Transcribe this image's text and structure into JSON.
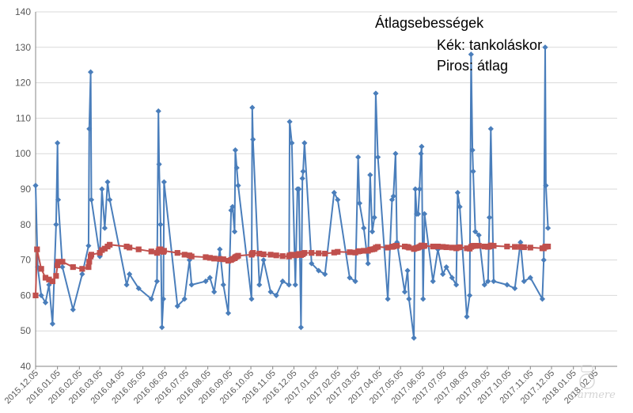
{
  "chart_data": {
    "type": "line",
    "title": "Átlagsebességek",
    "legend_lines": [
      "Kék: tankoláskor",
      "Piros: átlag"
    ],
    "ylim": [
      40,
      140
    ],
    "yticks": [
      40,
      50,
      60,
      70,
      80,
      90,
      100,
      110,
      120,
      130,
      140
    ],
    "grid": true,
    "xlim": [
      "2015-12-05",
      "2018-03-08"
    ],
    "xtick_labels": [
      "2015.12.05",
      "2016.01.05",
      "2016.02.05",
      "2016.03.05",
      "2016.04.05",
      "2016.05.05",
      "2016.06.05",
      "2016.07.05",
      "2016.08.05",
      "2016.09.05",
      "2016.10.05",
      "2016.11.05",
      "2016.12.05",
      "2017.01.05",
      "2017.02.05",
      "2017.03.05",
      "2017.04.05",
      "2017.05.05",
      "2017.06.05",
      "2017.07.05",
      "2017.08.05",
      "2017.09.05",
      "2017.10.05",
      "2017.11.05",
      "2017.12.05",
      "2018.01.05",
      "2018.02.05"
    ],
    "series": [
      {
        "name": "Kék: tankoláskor",
        "color": "#4a7ebb",
        "marker": "diamond",
        "points": [
          [
            "2015-12-05",
            91
          ],
          [
            "2015-12-08",
            68
          ],
          [
            "2015-12-13",
            60
          ],
          [
            "2015-12-19",
            58
          ],
          [
            "2015-12-24",
            63
          ],
          [
            "2015-12-29",
            52
          ],
          [
            "2016-01-03",
            80
          ],
          [
            "2016-01-05",
            103
          ],
          [
            "2016-01-06",
            87
          ],
          [
            "2016-01-12",
            68
          ],
          [
            "2016-01-27",
            56
          ],
          [
            "2016-02-09",
            66
          ],
          [
            "2016-02-18",
            74
          ],
          [
            "2016-02-19",
            107
          ],
          [
            "2016-02-21",
            123
          ],
          [
            "2016-02-22",
            87
          ],
          [
            "2016-03-05",
            71
          ],
          [
            "2016-03-08",
            90
          ],
          [
            "2016-03-12",
            79
          ],
          [
            "2016-03-16",
            92
          ],
          [
            "2016-03-19",
            87
          ],
          [
            "2016-04-12",
            63
          ],
          [
            "2016-04-16",
            66
          ],
          [
            "2016-04-29",
            62
          ],
          [
            "2016-05-17",
            59
          ],
          [
            "2016-05-25",
            64
          ],
          [
            "2016-05-27",
            112
          ],
          [
            "2016-05-28",
            97
          ],
          [
            "2016-05-30",
            80
          ],
          [
            "2016-06-01",
            51
          ],
          [
            "2016-06-03",
            59
          ],
          [
            "2016-06-04",
            92
          ],
          [
            "2016-06-23",
            57
          ],
          [
            "2016-07-03",
            59
          ],
          [
            "2016-07-10",
            70
          ],
          [
            "2016-07-13",
            63
          ],
          [
            "2016-08-02",
            64
          ],
          [
            "2016-08-08",
            65
          ],
          [
            "2016-08-14",
            61
          ],
          [
            "2016-08-22",
            73
          ],
          [
            "2016-08-27",
            63
          ],
          [
            "2016-09-03",
            55
          ],
          [
            "2016-09-07",
            84
          ],
          [
            "2016-09-09",
            85
          ],
          [
            "2016-09-12",
            78
          ],
          [
            "2016-09-13",
            101
          ],
          [
            "2016-09-15",
            96
          ],
          [
            "2016-09-17",
            91
          ],
          [
            "2016-10-06",
            59
          ],
          [
            "2016-10-07",
            113
          ],
          [
            "2016-10-08",
            104
          ],
          [
            "2016-10-17",
            63
          ],
          [
            "2016-10-23",
            70
          ],
          [
            "2016-11-02",
            61
          ],
          [
            "2016-11-10",
            60
          ],
          [
            "2016-11-19",
            64
          ],
          [
            "2016-11-28",
            63
          ],
          [
            "2016-11-29",
            109
          ],
          [
            "2016-12-02",
            103
          ],
          [
            "2016-12-07",
            63
          ],
          [
            "2016-12-10",
            90
          ],
          [
            "2016-12-12",
            90
          ],
          [
            "2016-12-15",
            51
          ],
          [
            "2016-12-17",
            93
          ],
          [
            "2016-12-18",
            95
          ],
          [
            "2016-12-20",
            103
          ],
          [
            "2016-12-30",
            69
          ],
          [
            "2017-01-09",
            67
          ],
          [
            "2017-01-18",
            66
          ],
          [
            "2017-01-31",
            89
          ],
          [
            "2017-02-05",
            87
          ],
          [
            "2017-02-22",
            65
          ],
          [
            "2017-03-02",
            64
          ],
          [
            "2017-03-06",
            99
          ],
          [
            "2017-03-08",
            86
          ],
          [
            "2017-03-14",
            79
          ],
          [
            "2017-03-20",
            69
          ],
          [
            "2017-03-23",
            94
          ],
          [
            "2017-03-26",
            78
          ],
          [
            "2017-03-29",
            82
          ],
          [
            "2017-03-31",
            117
          ],
          [
            "2017-04-03",
            99
          ],
          [
            "2017-04-17",
            59
          ],
          [
            "2017-04-23",
            87
          ],
          [
            "2017-04-25",
            88
          ],
          [
            "2017-04-28",
            100
          ],
          [
            "2017-04-30",
            75
          ],
          [
            "2017-05-11",
            61
          ],
          [
            "2017-05-15",
            67
          ],
          [
            "2017-05-17",
            59
          ],
          [
            "2017-05-24",
            48
          ],
          [
            "2017-05-26",
            90
          ],
          [
            "2017-05-28",
            83
          ],
          [
            "2017-05-30",
            83
          ],
          [
            "2017-06-01",
            90
          ],
          [
            "2017-06-03",
            100
          ],
          [
            "2017-06-04",
            102
          ],
          [
            "2017-06-06",
            59
          ],
          [
            "2017-06-08",
            83
          ],
          [
            "2017-06-20",
            64
          ],
          [
            "2017-06-27",
            73
          ],
          [
            "2017-07-04",
            66
          ],
          [
            "2017-07-09",
            68
          ],
          [
            "2017-07-17",
            65
          ],
          [
            "2017-07-23",
            63
          ],
          [
            "2017-07-25",
            89
          ],
          [
            "2017-07-28",
            85
          ],
          [
            "2017-08-07",
            54
          ],
          [
            "2017-08-11",
            60
          ],
          [
            "2017-08-13",
            128
          ],
          [
            "2017-08-15",
            101
          ],
          [
            "2017-08-16",
            95
          ],
          [
            "2017-08-19",
            78
          ],
          [
            "2017-08-24",
            77
          ],
          [
            "2017-09-01",
            63
          ],
          [
            "2017-09-06",
            64
          ],
          [
            "2017-09-08",
            82
          ],
          [
            "2017-09-10",
            107
          ],
          [
            "2017-09-14",
            64
          ],
          [
            "2017-10-03",
            63
          ],
          [
            "2017-10-14",
            62
          ],
          [
            "2017-10-22",
            75
          ],
          [
            "2017-10-27",
            64
          ],
          [
            "2017-11-05",
            65
          ],
          [
            "2017-11-22",
            59
          ],
          [
            "2017-11-24",
            70
          ],
          [
            "2017-11-26",
            130
          ],
          [
            "2017-11-27",
            91
          ],
          [
            "2017-11-30",
            79
          ]
        ]
      },
      {
        "name": "Piros: átlag",
        "color": "#c0504d",
        "marker": "square",
        "points": [
          [
            "2015-12-05",
            60
          ],
          [
            "2015-12-07",
            73
          ],
          [
            "2015-12-13",
            67.5
          ],
          [
            "2015-12-19",
            65
          ],
          [
            "2015-12-24",
            64.5
          ],
          [
            "2015-12-29",
            64
          ],
          [
            "2016-01-03",
            65.5
          ],
          [
            "2016-01-05",
            68.5
          ],
          [
            "2016-01-06",
            69.5
          ],
          [
            "2016-01-12",
            69.5
          ],
          [
            "2016-01-27",
            68
          ],
          [
            "2016-02-09",
            67.5
          ],
          [
            "2016-02-18",
            68
          ],
          [
            "2016-02-19",
            69.5
          ],
          [
            "2016-02-21",
            71
          ],
          [
            "2016-02-22",
            71.5
          ],
          [
            "2016-03-05",
            72
          ],
          [
            "2016-03-08",
            72.8
          ],
          [
            "2016-03-12",
            73.2
          ],
          [
            "2016-03-16",
            73.8
          ],
          [
            "2016-03-19",
            74.3
          ],
          [
            "2016-04-12",
            73.8
          ],
          [
            "2016-04-16",
            73.5
          ],
          [
            "2016-04-29",
            73
          ],
          [
            "2016-05-17",
            72.4
          ],
          [
            "2016-05-25",
            72
          ],
          [
            "2016-05-27",
            72.5
          ],
          [
            "2016-05-28",
            73
          ],
          [
            "2016-05-30",
            73
          ],
          [
            "2016-06-01",
            72.5
          ],
          [
            "2016-06-03",
            72.3
          ],
          [
            "2016-06-04",
            72.6
          ],
          [
            "2016-06-23",
            72
          ],
          [
            "2016-07-03",
            71.5
          ],
          [
            "2016-07-10",
            71.3
          ],
          [
            "2016-07-13",
            71
          ],
          [
            "2016-08-02",
            70.8
          ],
          [
            "2016-08-08",
            70.6
          ],
          [
            "2016-08-14",
            70.4
          ],
          [
            "2016-08-22",
            70.3
          ],
          [
            "2016-08-27",
            70.2
          ],
          [
            "2016-09-03",
            69.8
          ],
          [
            "2016-09-07",
            70
          ],
          [
            "2016-09-09",
            70.3
          ],
          [
            "2016-09-12",
            70.5
          ],
          [
            "2016-09-13",
            70.8
          ],
          [
            "2016-09-15",
            71
          ],
          [
            "2016-09-17",
            71.2
          ],
          [
            "2016-10-06",
            71.5
          ],
          [
            "2016-10-07",
            71.8
          ],
          [
            "2016-10-08",
            72
          ],
          [
            "2016-10-17",
            71.8
          ],
          [
            "2016-10-23",
            71.6
          ],
          [
            "2016-11-02",
            71.5
          ],
          [
            "2016-11-10",
            71.3
          ],
          [
            "2016-11-19",
            71.1
          ],
          [
            "2016-11-28",
            71
          ],
          [
            "2016-11-29",
            71.3
          ],
          [
            "2016-12-02",
            71.5
          ],
          [
            "2016-12-07",
            71.3
          ],
          [
            "2016-12-10",
            71.5
          ],
          [
            "2016-12-12",
            71.7
          ],
          [
            "2016-12-15",
            71.4
          ],
          [
            "2016-12-17",
            71.6
          ],
          [
            "2016-12-18",
            71.8
          ],
          [
            "2016-12-20",
            72
          ],
          [
            "2016-12-30",
            72
          ],
          [
            "2017-01-09",
            71.9
          ],
          [
            "2017-01-18",
            71.8
          ],
          [
            "2017-01-31",
            72.1
          ],
          [
            "2017-02-05",
            72.3
          ],
          [
            "2017-02-22",
            72.2
          ],
          [
            "2017-03-02",
            72.1
          ],
          [
            "2017-03-06",
            72.4
          ],
          [
            "2017-03-08",
            72.5
          ],
          [
            "2017-03-14",
            72.6
          ],
          [
            "2017-03-20",
            72.6
          ],
          [
            "2017-03-23",
            72.9
          ],
          [
            "2017-03-26",
            73
          ],
          [
            "2017-03-29",
            73.1
          ],
          [
            "2017-03-31",
            73.5
          ],
          [
            "2017-04-03",
            73.7
          ],
          [
            "2017-04-17",
            73.5
          ],
          [
            "2017-04-23",
            73.7
          ],
          [
            "2017-04-25",
            73.8
          ],
          [
            "2017-04-28",
            74
          ],
          [
            "2017-04-30",
            74
          ],
          [
            "2017-05-11",
            73.8
          ],
          [
            "2017-05-15",
            73.7
          ],
          [
            "2017-05-17",
            73.5
          ],
          [
            "2017-05-24",
            73.1
          ],
          [
            "2017-05-26",
            73.3
          ],
          [
            "2017-05-28",
            73.4
          ],
          [
            "2017-05-30",
            73.5
          ],
          [
            "2017-06-01",
            73.7
          ],
          [
            "2017-06-03",
            73.9
          ],
          [
            "2017-06-04",
            74.1
          ],
          [
            "2017-06-06",
            73.9
          ],
          [
            "2017-06-08",
            74
          ],
          [
            "2017-06-20",
            73.8
          ],
          [
            "2017-06-27",
            73.8
          ],
          [
            "2017-07-04",
            73.7
          ],
          [
            "2017-07-09",
            73.6
          ],
          [
            "2017-07-17",
            73.5
          ],
          [
            "2017-07-23",
            73.3
          ],
          [
            "2017-07-25",
            73.5
          ],
          [
            "2017-07-28",
            73.6
          ],
          [
            "2017-08-07",
            73.3
          ],
          [
            "2017-08-11",
            73.2
          ],
          [
            "2017-08-13",
            73.7
          ],
          [
            "2017-08-15",
            73.9
          ],
          [
            "2017-08-16",
            74
          ],
          [
            "2017-08-19",
            74
          ],
          [
            "2017-08-24",
            74
          ],
          [
            "2017-09-01",
            73.8
          ],
          [
            "2017-09-06",
            73.7
          ],
          [
            "2017-09-08",
            73.8
          ],
          [
            "2017-09-10",
            74.1
          ],
          [
            "2017-09-14",
            74
          ],
          [
            "2017-10-03",
            73.8
          ],
          [
            "2017-10-14",
            73.7
          ],
          [
            "2017-10-22",
            73.7
          ],
          [
            "2017-10-27",
            73.6
          ],
          [
            "2017-11-05",
            73.5
          ],
          [
            "2017-11-22",
            73.3
          ],
          [
            "2017-11-24",
            73.3
          ],
          [
            "2017-11-26",
            73.7
          ],
          [
            "2017-11-27",
            73.8
          ],
          [
            "2017-11-30",
            73.8
          ]
        ]
      }
    ]
  },
  "watermark": {
    "text": "Carmere"
  }
}
